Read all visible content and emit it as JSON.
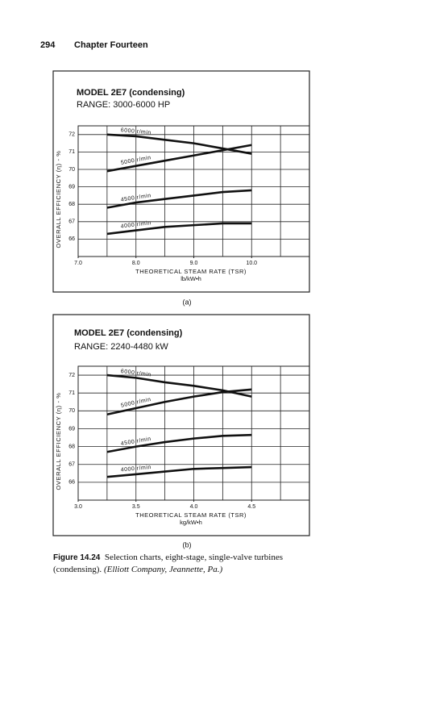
{
  "header": {
    "page_number": "294",
    "chapter": "Chapter Fourteen"
  },
  "chart_data": [
    {
      "type": "line",
      "title": "MODEL 2E7 (condensing)",
      "subtitle": "RANGE: 3000-6000 HP",
      "x_label": "THEORETICAL STEAM RATE (TSR)",
      "x_unit": "lb/kW•h",
      "y_label": "OVERALL EFFICIENCY (η) - %",
      "panel_label": "(a)",
      "x": [
        7.5,
        8.0,
        8.5,
        9.0,
        9.5,
        10.0
      ],
      "series": [
        {
          "name": "6000 r/min",
          "color": "#111111",
          "values": [
            72.0,
            71.9,
            71.7,
            71.5,
            71.2,
            70.9
          ]
        },
        {
          "name": "5000 r/min",
          "color": "#111111",
          "values": [
            69.9,
            70.2,
            70.5,
            70.8,
            71.1,
            71.4
          ]
        },
        {
          "name": "4500 r/min",
          "color": "#111111",
          "values": [
            67.8,
            68.1,
            68.3,
            68.5,
            68.7,
            68.8
          ]
        },
        {
          "name": "4000 r/min",
          "color": "#111111",
          "values": [
            66.3,
            66.5,
            66.7,
            66.8,
            66.9,
            66.9
          ]
        }
      ],
      "xlim": [
        7,
        11
      ],
      "ylim": [
        65,
        72.5
      ],
      "xticks": [
        {
          "value": 7,
          "label": "7.0"
        },
        {
          "value": 8,
          "label": "8.0"
        },
        {
          "value": 9,
          "label": "9.0"
        },
        {
          "value": 10,
          "label": "10.0"
        }
      ],
      "xgrid": [
        7.5,
        8,
        8.5,
        9,
        9.5,
        10,
        10.5
      ],
      "yticks": [
        66,
        67,
        68,
        69,
        70,
        71,
        72
      ],
      "grid": true
    },
    {
      "type": "line",
      "title": "MODEL 2E7 (condensing)",
      "subtitle": "RANGE: 2240-4480 kW",
      "x_label": "THEORETICAL STEAM RATE (TSR)",
      "x_unit": "kg/kW•h",
      "y_label": "OVERALL EFFICIENCY (η) - %",
      "panel_label": "(b)",
      "x": [
        3.25,
        3.5,
        3.75,
        4.0,
        4.25,
        4.5
      ],
      "series": [
        {
          "name": "6000 r/min",
          "color": "#111111",
          "values": [
            72.0,
            71.85,
            71.6,
            71.4,
            71.15,
            70.8
          ]
        },
        {
          "name": "5000 r/min",
          "color": "#111111",
          "values": [
            69.8,
            70.15,
            70.5,
            70.8,
            71.05,
            71.2
          ]
        },
        {
          "name": "4500 r/min",
          "color": "#111111",
          "values": [
            67.7,
            68.0,
            68.25,
            68.45,
            68.6,
            68.65
          ]
        },
        {
          "name": "4000 r/min",
          "color": "#111111",
          "values": [
            66.3,
            66.45,
            66.6,
            66.75,
            66.8,
            66.85
          ]
        }
      ],
      "xlim": [
        3,
        5
      ],
      "ylim": [
        65,
        72.5
      ],
      "xticks": [
        {
          "value": 3,
          "label": "3.0"
        },
        {
          "value": 3.5,
          "label": "3.5"
        },
        {
          "value": 4,
          "label": "4.0"
        },
        {
          "value": 4.5,
          "label": "4.5"
        }
      ],
      "xgrid": [
        3.25,
        3.5,
        3.75,
        4,
        4.25,
        4.5,
        4.75
      ],
      "yticks": [
        66,
        67,
        68,
        69,
        70,
        71,
        72
      ],
      "grid": true
    }
  ],
  "caption": {
    "label": "Figure 14.24",
    "text": "Selection charts, eight-stage, single-valve turbines (condensing).",
    "source": "(Elliott Company, Jeannette, Pa.)"
  }
}
